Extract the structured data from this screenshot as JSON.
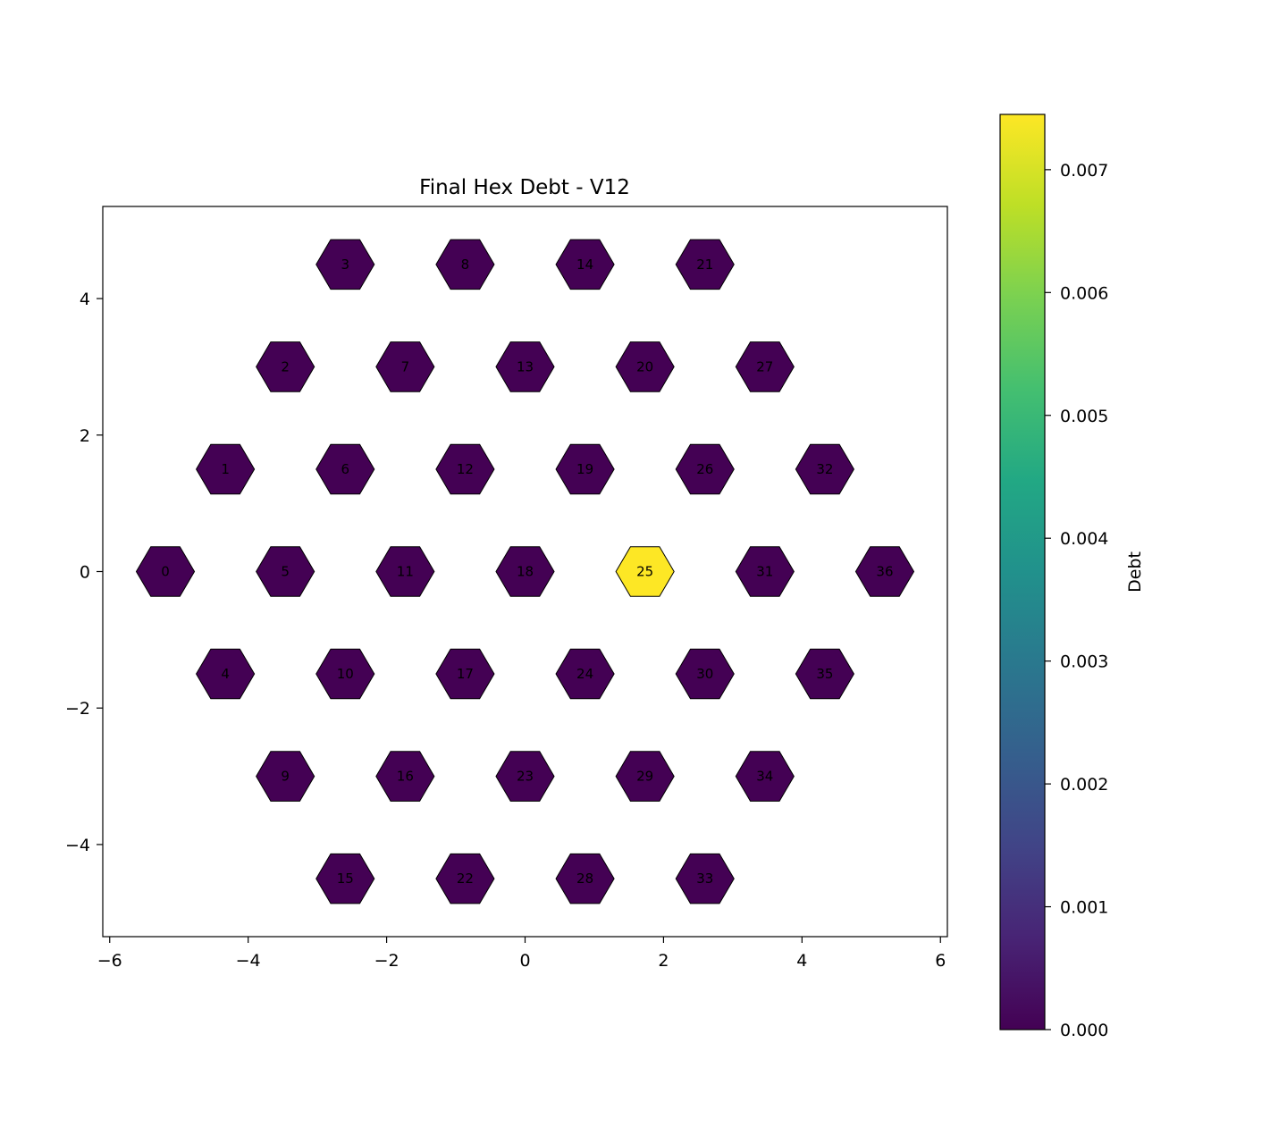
{
  "chart_data": {
    "type": "heatmap",
    "title": "Final Hex Debt - V12",
    "xlabel": "",
    "ylabel": "",
    "xlim": [
      -6.1,
      6.1
    ],
    "ylim": [
      -5.35,
      5.35
    ],
    "xticks": [
      -6,
      -4,
      -2,
      0,
      2,
      4,
      6
    ],
    "xtick_labels": [
      "−6",
      "−4",
      "−2",
      "0",
      "2",
      "4",
      "6"
    ],
    "yticks": [
      -4,
      -2,
      0,
      2,
      4
    ],
    "ytick_labels": [
      "−4",
      "−2",
      "0",
      "2",
      "4"
    ],
    "grid": false,
    "colorbar": {
      "label": "Debt",
      "colormap": "viridis",
      "range": [
        0,
        0.00745
      ],
      "ticks": [
        0,
        0.001,
        0.002,
        0.003,
        0.004,
        0.005,
        0.006,
        0.007
      ],
      "tick_labels": [
        "0.000",
        "0.001",
        "0.002",
        "0.003",
        "0.004",
        "0.005",
        "0.006",
        "0.007"
      ]
    },
    "cells": [
      {
        "id": "0",
        "x": -5.196,
        "y": 0,
        "value": 0
      },
      {
        "id": "1",
        "x": -4.33,
        "y": 1.5,
        "value": 0
      },
      {
        "id": "2",
        "x": -3.464,
        "y": 3,
        "value": 0
      },
      {
        "id": "3",
        "x": -2.598,
        "y": 4.5,
        "value": 0
      },
      {
        "id": "4",
        "x": -4.33,
        "y": -1.5,
        "value": 0
      },
      {
        "id": "5",
        "x": -3.464,
        "y": 0,
        "value": 0
      },
      {
        "id": "6",
        "x": -2.598,
        "y": 1.5,
        "value": 0
      },
      {
        "id": "7",
        "x": -1.732,
        "y": 3,
        "value": 0
      },
      {
        "id": "8",
        "x": -0.866,
        "y": 4.5,
        "value": 0
      },
      {
        "id": "9",
        "x": -3.464,
        "y": -3,
        "value": 0
      },
      {
        "id": "10",
        "x": -2.598,
        "y": -1.5,
        "value": 0
      },
      {
        "id": "11",
        "x": -1.732,
        "y": 0,
        "value": 0
      },
      {
        "id": "12",
        "x": -0.866,
        "y": 1.5,
        "value": 0
      },
      {
        "id": "13",
        "x": 0,
        "y": 3,
        "value": 0
      },
      {
        "id": "14",
        "x": 0.866,
        "y": 4.5,
        "value": 0
      },
      {
        "id": "15",
        "x": -2.598,
        "y": -4.5,
        "value": 0
      },
      {
        "id": "16",
        "x": -1.732,
        "y": -3,
        "value": 0
      },
      {
        "id": "17",
        "x": -0.866,
        "y": -1.5,
        "value": 0
      },
      {
        "id": "18",
        "x": 0,
        "y": 0,
        "value": 0
      },
      {
        "id": "19",
        "x": 0.866,
        "y": 1.5,
        "value": 0
      },
      {
        "id": "20",
        "x": 1.732,
        "y": 3,
        "value": 0
      },
      {
        "id": "21",
        "x": 2.598,
        "y": 4.5,
        "value": 0
      },
      {
        "id": "22",
        "x": -0.866,
        "y": -4.5,
        "value": 0
      },
      {
        "id": "23",
        "x": 0,
        "y": -3,
        "value": 0
      },
      {
        "id": "24",
        "x": 0.866,
        "y": -1.5,
        "value": 0
      },
      {
        "id": "25",
        "x": 1.732,
        "y": 0,
        "value": 0.00745
      },
      {
        "id": "26",
        "x": 2.598,
        "y": 1.5,
        "value": 0
      },
      {
        "id": "27",
        "x": 3.464,
        "y": 3,
        "value": 0
      },
      {
        "id": "28",
        "x": 0.866,
        "y": -4.5,
        "value": 0
      },
      {
        "id": "29",
        "x": 1.732,
        "y": -3,
        "value": 0
      },
      {
        "id": "30",
        "x": 2.598,
        "y": -1.5,
        "value": 0
      },
      {
        "id": "31",
        "x": 3.464,
        "y": 0,
        "value": 0
      },
      {
        "id": "32",
        "x": 4.33,
        "y": 1.5,
        "value": 0
      },
      {
        "id": "33",
        "x": 2.598,
        "y": -4.5,
        "value": 0
      },
      {
        "id": "34",
        "x": 3.464,
        "y": -3,
        "value": 0
      },
      {
        "id": "35",
        "x": 4.33,
        "y": -1.5,
        "value": 0
      },
      {
        "id": "36",
        "x": 5.196,
        "y": 0,
        "value": 0
      }
    ]
  }
}
